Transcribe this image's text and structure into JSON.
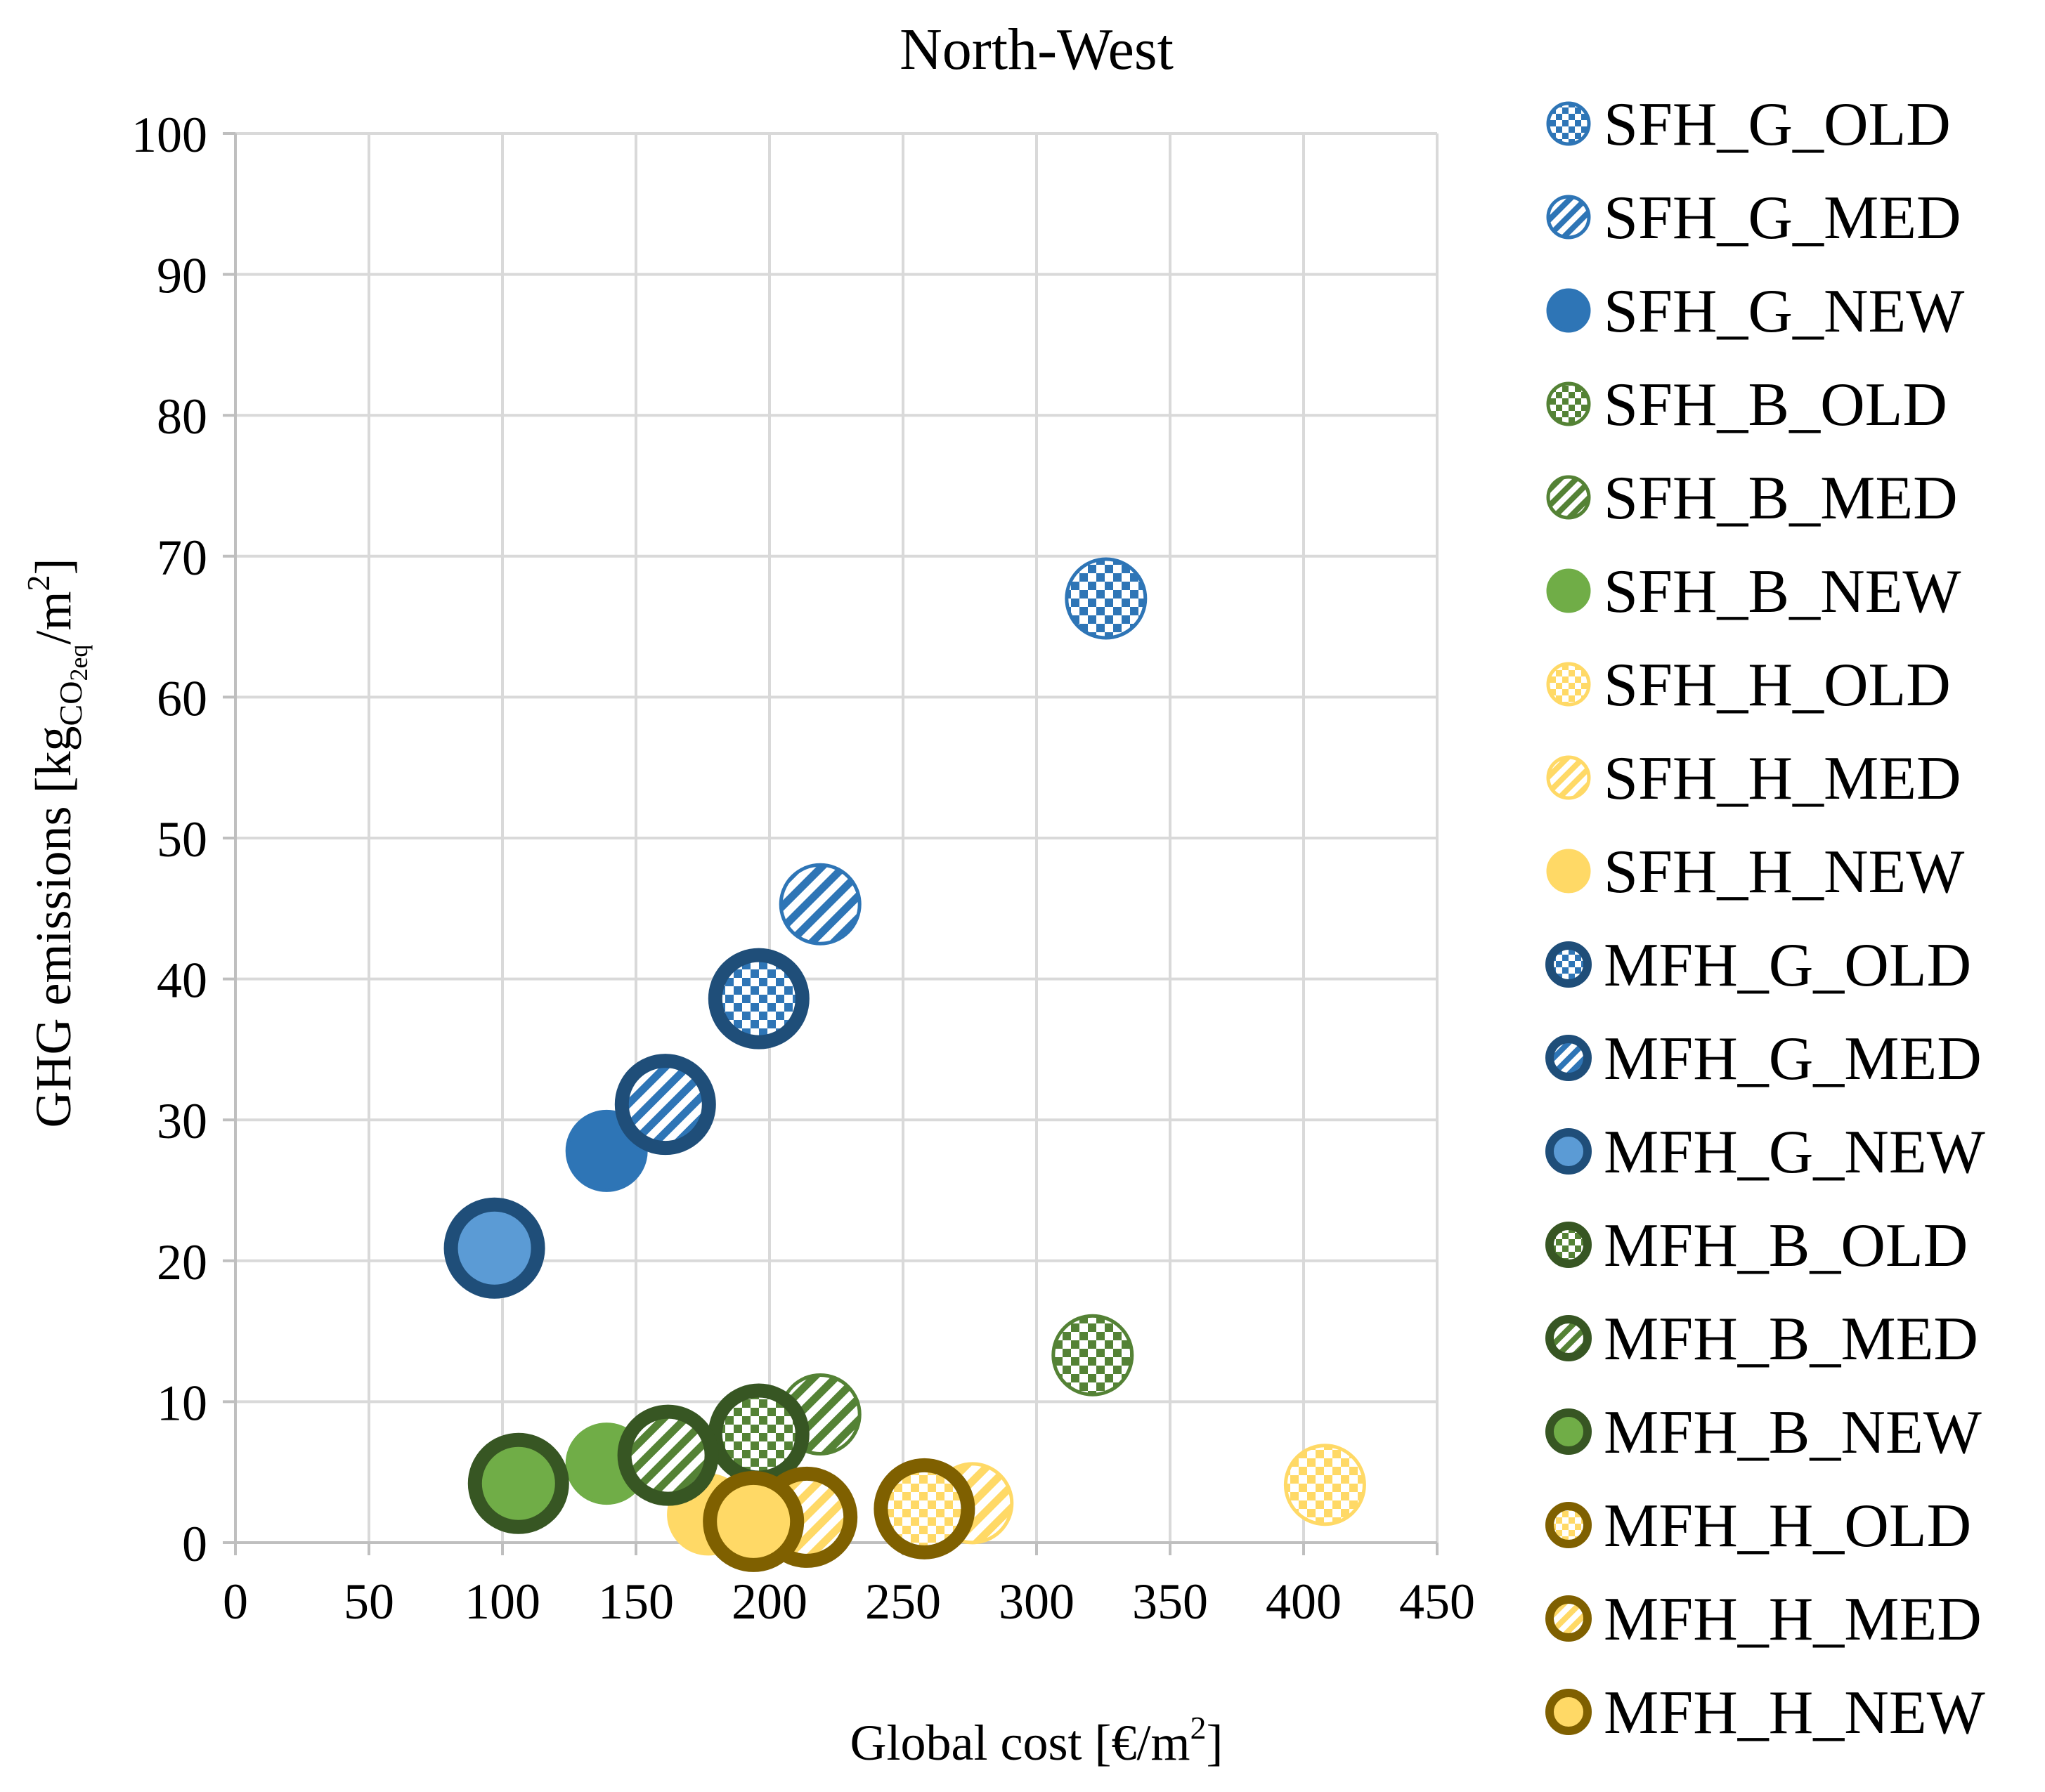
{
  "chart_data": {
    "type": "scatter",
    "title": "North-West",
    "xlabel": {
      "main": "Global cost [€/m",
      "sup": "2",
      "end": "]"
    },
    "ylabel": {
      "main": "GHG emissions [kg",
      "sub": "CO",
      "sub2": "2eq",
      "mid": "/m",
      "sup": "2",
      "end": "]"
    },
    "xlim": [
      0,
      450
    ],
    "ylim": [
      0,
      100
    ],
    "xticks": [
      "0",
      "50",
      "100",
      "150",
      "200",
      "250",
      "300",
      "350",
      "400",
      "450"
    ],
    "yticks": [
      "0",
      "10",
      "20",
      "30",
      "40",
      "50",
      "60",
      "70",
      "80",
      "90",
      "100"
    ],
    "grid": true,
    "legend_position": "right",
    "series": [
      {
        "name": "SFH_G_OLD",
        "x": 326,
        "y": 67.0,
        "color": "#2E75B6",
        "outline": "#2E75B6",
        "fill": "checker",
        "kind": "SFH"
      },
      {
        "name": "SFH_G_MED",
        "x": 219,
        "y": 45.3,
        "color": "#2E75B6",
        "outline": "#2E75B6",
        "fill": "stripes",
        "kind": "SFH"
      },
      {
        "name": "SFH_G_NEW",
        "x": 139,
        "y": 27.8,
        "color": "#2E75B6",
        "outline": "#2E75B6",
        "fill": "solid",
        "kind": "SFH"
      },
      {
        "name": "SFH_B_OLD",
        "x": 321,
        "y": 13.3,
        "color": "#548235",
        "outline": "#548235",
        "fill": "checker",
        "kind": "SFH"
      },
      {
        "name": "SFH_B_MED",
        "x": 219,
        "y": 9.1,
        "color": "#548235",
        "outline": "#548235",
        "fill": "stripes",
        "kind": "SFH"
      },
      {
        "name": "SFH_B_NEW",
        "x": 139,
        "y": 5.6,
        "color": "#70AD47",
        "outline": "#70AD47",
        "fill": "solid",
        "kind": "SFH"
      },
      {
        "name": "SFH_H_OLD",
        "x": 408,
        "y": 4.1,
        "color": "#FFD966",
        "outline": "#FFD966",
        "fill": "checker",
        "kind": "SFH"
      },
      {
        "name": "SFH_H_MED",
        "x": 276,
        "y": 2.8,
        "color": "#FFD966",
        "outline": "#FFD966",
        "fill": "stripes",
        "kind": "SFH"
      },
      {
        "name": "SFH_H_NEW",
        "x": 177,
        "y": 2.0,
        "color": "#FFD966",
        "outline": "#FFD966",
        "fill": "solid",
        "kind": "SFH"
      },
      {
        "name": "MFH_G_OLD",
        "x": 196,
        "y": 38.6,
        "color": "#2E75B6",
        "outline": "#1F4E79",
        "fill": "checker",
        "kind": "MFH"
      },
      {
        "name": "MFH_G_MED",
        "x": 161,
        "y": 31.1,
        "color": "#2E75B6",
        "outline": "#1F4E79",
        "fill": "stripes",
        "kind": "MFH"
      },
      {
        "name": "MFH_G_NEW",
        "x": 97,
        "y": 20.9,
        "color": "#5B9BD5",
        "outline": "#1F4E79",
        "fill": "solid",
        "kind": "MFH"
      },
      {
        "name": "MFH_B_OLD",
        "x": 196,
        "y": 7.7,
        "color": "#548235",
        "outline": "#375623",
        "fill": "checker",
        "kind": "MFH"
      },
      {
        "name": "MFH_B_MED",
        "x": 162,
        "y": 6.2,
        "color": "#548235",
        "outline": "#375623",
        "fill": "stripes",
        "kind": "MFH"
      },
      {
        "name": "MFH_B_NEW",
        "x": 106,
        "y": 4.2,
        "color": "#70AD47",
        "outline": "#375623",
        "fill": "solid",
        "kind": "MFH"
      },
      {
        "name": "MFH_H_OLD",
        "x": 258,
        "y": 2.4,
        "color": "#FFD966",
        "outline": "#7F6000",
        "fill": "checker",
        "kind": "MFH"
      },
      {
        "name": "MFH_H_MED",
        "x": 214,
        "y": 1.8,
        "color": "#FFD966",
        "outline": "#7F6000",
        "fill": "stripes",
        "kind": "MFH"
      },
      {
        "name": "MFH_H_NEW",
        "x": 194,
        "y": 1.5,
        "color": "#FFD966",
        "outline": "#7F6000",
        "fill": "solid",
        "kind": "MFH"
      }
    ]
  }
}
